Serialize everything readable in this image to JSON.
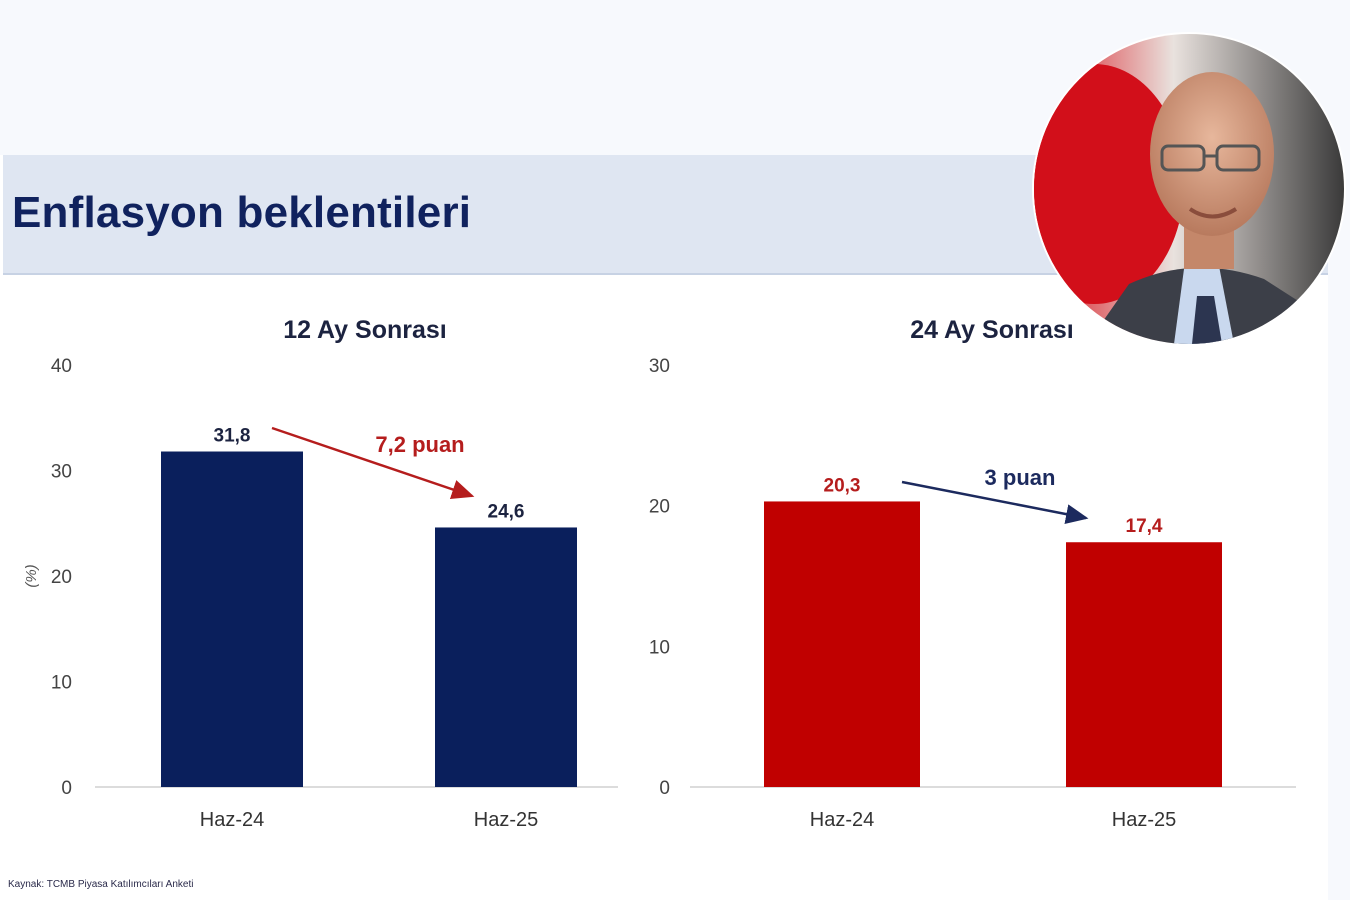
{
  "slide": {
    "title": "Enflasyon beklentileri",
    "source": "Kaynak: TCMB Piyasa Katılımcıları Anketi"
  },
  "colors": {
    "navy": "#0a1f5c",
    "red": "#c00000",
    "title_band": "#dfe6f2"
  },
  "portrait": {
    "icon": "person-photo-icon"
  },
  "chart_data": [
    {
      "type": "bar",
      "title": "12 Ay Sonrası",
      "ylabel": "(%)",
      "categories": [
        "Haz-24",
        "Haz-25"
      ],
      "values": [
        31.8,
        24.6
      ],
      "value_labels": [
        "31,8",
        "24,6"
      ],
      "ylim": [
        0,
        40
      ],
      "yticks": [
        0,
        10,
        20,
        30,
        40
      ],
      "bar_color": "#0a1f5c",
      "annotation": {
        "text": "7,2 puan",
        "color": "#b51d1d"
      },
      "grid": false
    },
    {
      "type": "bar",
      "title": "24 Ay Sonrası",
      "ylabel": "",
      "categories": [
        "Haz-24",
        "Haz-25"
      ],
      "values": [
        20.3,
        17.4
      ],
      "value_labels": [
        "20,3",
        "17,4"
      ],
      "ylim": [
        0,
        30
      ],
      "yticks": [
        0,
        10,
        20,
        30
      ],
      "bar_color": "#c00000",
      "annotation": {
        "text": "3 puan",
        "color": "#1c2a5e"
      },
      "grid": false
    }
  ]
}
